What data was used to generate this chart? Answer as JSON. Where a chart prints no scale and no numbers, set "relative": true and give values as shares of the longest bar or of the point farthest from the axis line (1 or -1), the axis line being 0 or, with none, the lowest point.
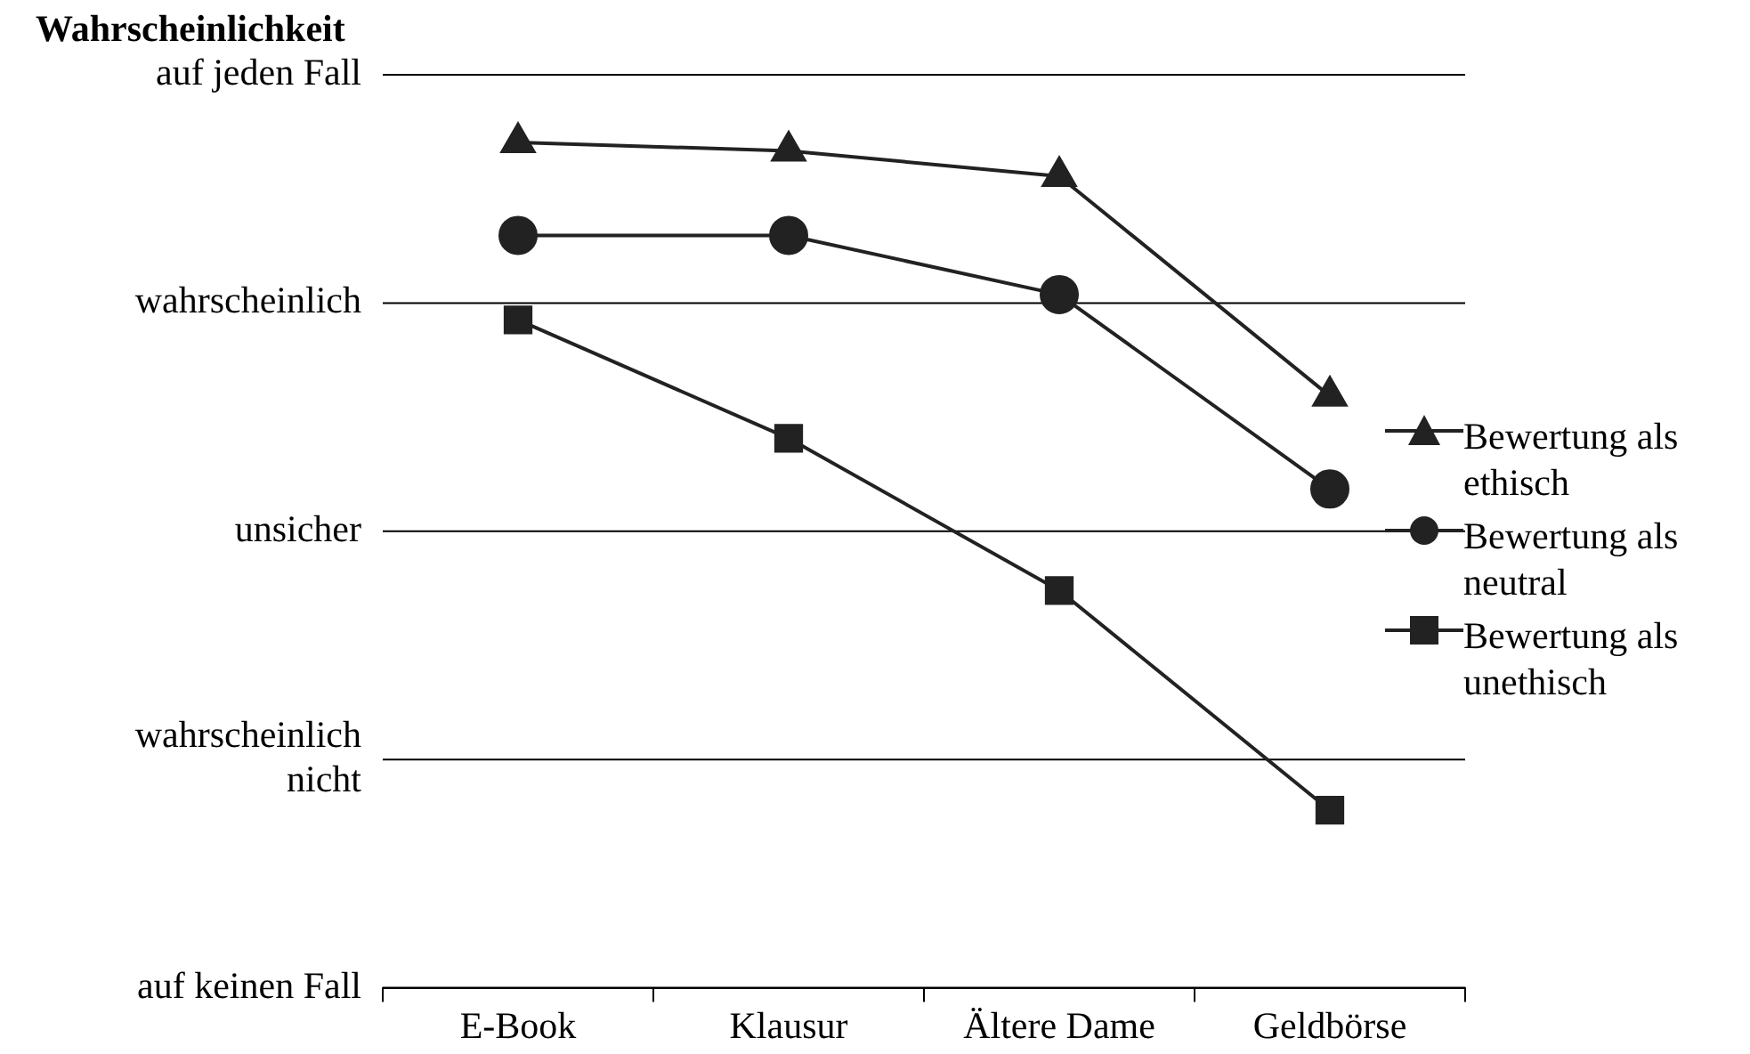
{
  "chart_data": {
    "type": "line",
    "ylabel": "Wahrscheinlichkeit",
    "categories": [
      "E-Book",
      "Klausur",
      "Ältere Dame",
      "Geldbörse"
    ],
    "relative": true,
    "legend": "right",
    "ref_lines": [
      {
        "axis": "y",
        "value": 0,
        "label": "auf keinen Fall"
      },
      {
        "axis": "y",
        "value": 0.27,
        "label": "wahrscheinlich nicht"
      },
      {
        "axis": "y",
        "value": 0.54,
        "label": "unsicher"
      },
      {
        "axis": "y",
        "value": 0.81,
        "label": "wahrscheinlich"
      },
      {
        "axis": "y",
        "value": 1.08,
        "label": "auf jeden Fall"
      }
    ],
    "series": [
      {
        "name": "Bewertung als ethisch",
        "color": "#222222",
        "marker": "triangle",
        "values": [
          1,
          0.99,
          0.96,
          0.7
        ]
      },
      {
        "name": "Bewertung als neutral",
        "color": "#222222",
        "marker": "circle",
        "values": [
          0.89,
          0.89,
          0.82,
          0.59
        ]
      },
      {
        "name": "Bewertung als unethisch",
        "color": "#222222",
        "marker": "square",
        "values": [
          0.79,
          0.65,
          0.47,
          0.21
        ]
      }
    ]
  }
}
